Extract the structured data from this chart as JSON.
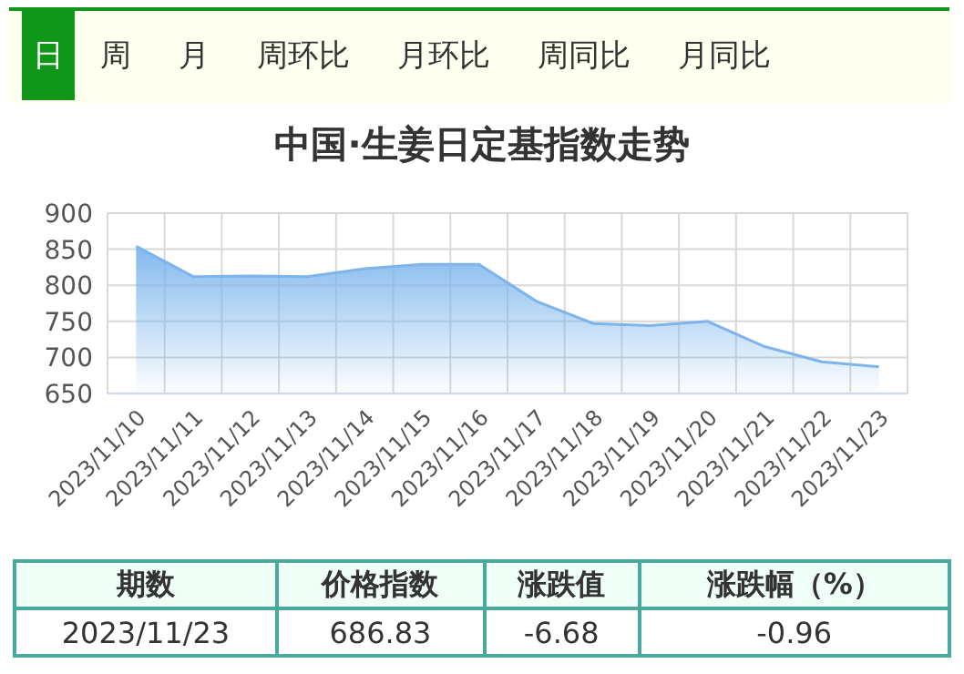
{
  "chart_data": {
    "type": "area",
    "title": "中国·生姜日定基指数走势",
    "categories": [
      "2023/11/10",
      "2023/11/11",
      "2023/11/12",
      "2023/11/13",
      "2023/11/14",
      "2023/11/15",
      "2023/11/16",
      "2023/11/17",
      "2023/11/18",
      "2023/11/19",
      "2023/11/20",
      "2023/11/21",
      "2023/11/22",
      "2023/11/23"
    ],
    "series": [
      {
        "color": "#7cb5ec",
        "values": [
          854,
          812,
          813,
          812,
          823,
          829,
          829,
          778,
          747,
          744,
          750,
          715,
          694,
          686.83
        ]
      }
    ],
    "ylim": [
      650,
      900
    ],
    "yticks": [
      650,
      700,
      750,
      800,
      850,
      900
    ],
    "grid": true,
    "annotations": [
      "日",
      "周",
      "月",
      "周环比",
      "月环比",
      "周同比",
      "月同比",
      "期数",
      "价格指数",
      "涨跌值",
      "涨跌幅（%）",
      "2023/11/23",
      "686.83",
      "-6.68",
      "-0.96"
    ]
  }
}
